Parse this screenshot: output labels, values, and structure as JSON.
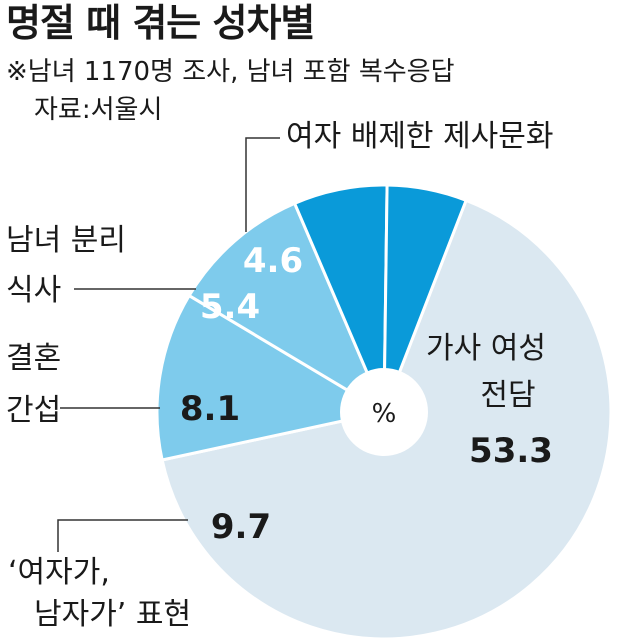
{
  "header": {
    "title": "명절 때 겪는 성차별",
    "note": "※남녀 1170명 조사, 남녀 포함 복수응답",
    "source": "자료:서울시"
  },
  "chart_data": {
    "type": "pie",
    "unit": "%",
    "series": [
      {
        "label_lines": [
          "가사 여성",
          "전담"
        ],
        "value": 53.3,
        "color": "#dbe8f1"
      },
      {
        "label_lines": [
          "‘여자가,",
          "남자가’ 표현"
        ],
        "value": 9.7,
        "color": "#7ecbec"
      },
      {
        "label_lines": [
          "결혼",
          "간섭"
        ],
        "value": 8.1,
        "color": "#7ecbec"
      },
      {
        "label_lines": [
          "남녀 분리",
          "식사"
        ],
        "value": 5.4,
        "color": "#0a9ad9"
      },
      {
        "label_lines": [
          "여자 배제한 제사문화"
        ],
        "value": 4.6,
        "color": "#0a9ad9"
      }
    ]
  }
}
